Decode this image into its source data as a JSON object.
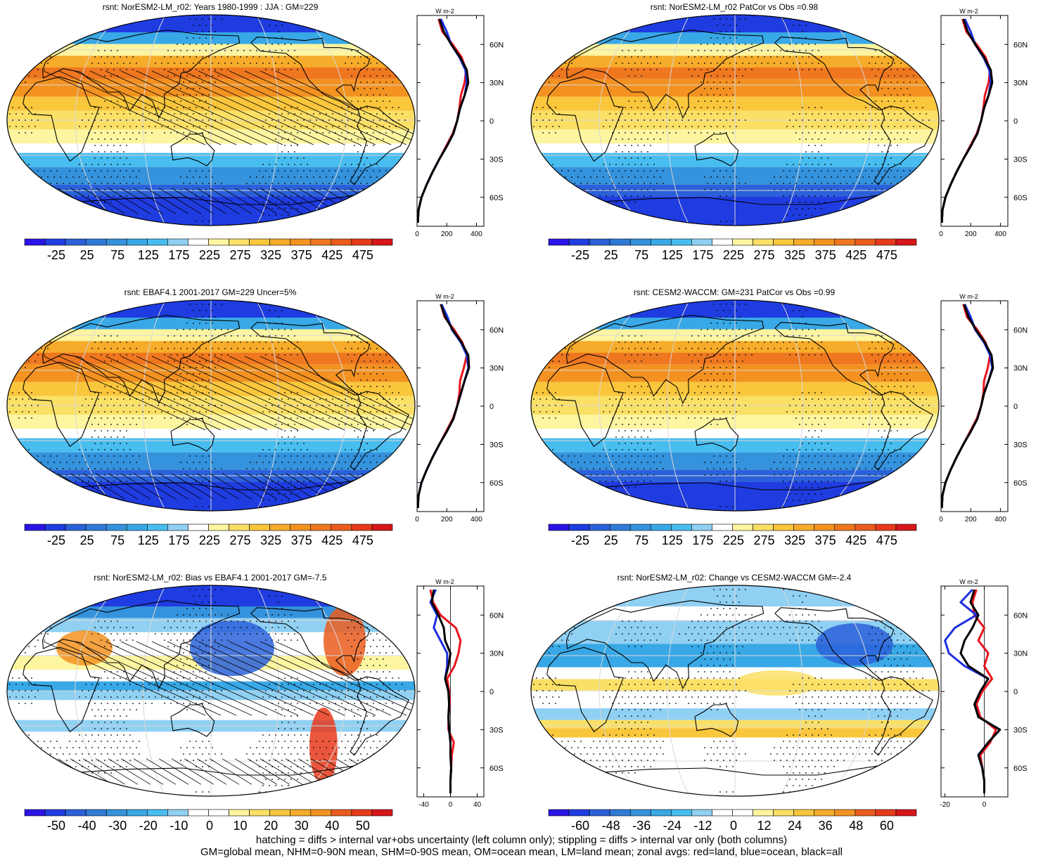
{
  "footer": {
    "line1": "hatching = diffs > internal var+obs uncertainty (left column only); stippling = diffs > internal var only (both columns)",
    "line2": "GM=global mean, NHM=0-90N mean, SHM=0-90S mean, OM=ocean mean, LM=land mean; zonal avgs: red=land, blue=ocean, black=all"
  },
  "profile_colors": {
    "land": "#e8141b",
    "ocean": "#1c2fe0",
    "all": "#000000"
  },
  "palettes": {
    "abs": [
      "#2b14e6",
      "#1f3ce0",
      "#2a61d9",
      "#2f7ad6",
      "#3592dc",
      "#38a8e6",
      "#48bdf0",
      "#8fd0f3",
      "#ffffff",
      "#fdf5a0",
      "#fbe066",
      "#f9c63c",
      "#f6ab2a",
      "#f39221",
      "#ee7720",
      "#ea5c1d",
      "#e63a1b",
      "#d6161a"
    ],
    "diff": [
      "#2b14e6",
      "#1f3ce0",
      "#2a61d9",
      "#2f7ad6",
      "#3592dc",
      "#38a8e6",
      "#48bdf0",
      "#8fd0f3",
      "#ffffff",
      "#ffffff",
      "#fdf5a0",
      "#fbe066",
      "#f9c63c",
      "#f6ab2a",
      "#f39221",
      "#ea5c1d",
      "#e63a1b",
      "#d6161a"
    ]
  },
  "chart_data": [
    {
      "type": "heatmap",
      "title": "rsnt: NorESM2-LM_r02: Years 1980-1999 : JJA : GM=229",
      "colorbar_labels": [
        "-25",
        "25",
        "75",
        "125",
        "175",
        "225",
        "275",
        "325",
        "375",
        "425",
        "475"
      ],
      "palette": "abs",
      "hatching": true,
      "stippling": true,
      "zonal_profile": {
        "unit": "W m-2",
        "xlim": [
          0,
          450
        ],
        "xticks": [
          "0",
          "200",
          "400"
        ],
        "lat_ticks": [
          "60N",
          "30N",
          "0",
          "30S",
          "60S"
        ],
        "lat": [
          80,
          70,
          60,
          50,
          40,
          30,
          20,
          10,
          0,
          -10,
          -20,
          -30,
          -40,
          -50,
          -60,
          -70,
          -80
        ],
        "all": [
          150,
          180,
          230,
          290,
          335,
          345,
          320,
          290,
          270,
          245,
          200,
          150,
          105,
          65,
          30,
          10,
          5
        ],
        "land": [
          145,
          170,
          240,
          300,
          330,
          320,
          295,
          285,
          270,
          240,
          195,
          150,
          105,
          65,
          30,
          10,
          5
        ],
        "ocean": [
          160,
          200,
          230,
          285,
          325,
          335,
          320,
          290,
          270,
          245,
          200,
          150,
          105,
          65,
          30,
          10,
          5
        ]
      }
    },
    {
      "type": "heatmap",
      "title": "rsnt: NorESM2-LM_r02 PatCor vs Obs =0.98",
      "colorbar_labels": [
        "-25",
        "25",
        "75",
        "125",
        "175",
        "225",
        "275",
        "325",
        "375",
        "425",
        "475"
      ],
      "palette": "abs",
      "hatching": false,
      "stippling": true,
      "zonal_profile": {
        "unit": "W m-2",
        "xlim": [
          0,
          450
        ],
        "xticks": [
          "0",
          "200",
          "400"
        ],
        "lat_ticks": [
          "60N",
          "30N",
          "0",
          "30S",
          "60S"
        ],
        "lat": [
          80,
          70,
          60,
          50,
          40,
          30,
          20,
          10,
          0,
          -10,
          -20,
          -30,
          -40,
          -50,
          -60,
          -70,
          -80
        ],
        "all": [
          150,
          180,
          230,
          290,
          335,
          345,
          320,
          290,
          270,
          245,
          200,
          150,
          105,
          65,
          30,
          10,
          5
        ],
        "land": [
          145,
          170,
          240,
          300,
          330,
          320,
          295,
          285,
          270,
          240,
          195,
          150,
          105,
          65,
          30,
          10,
          5
        ],
        "ocean": [
          160,
          200,
          230,
          285,
          325,
          335,
          320,
          290,
          270,
          245,
          200,
          150,
          105,
          65,
          30,
          10,
          5
        ]
      }
    },
    {
      "type": "heatmap",
      "title": "rsnt: EBAF4.1 2001-2017 GM=229 Uncer=5%",
      "colorbar_labels": [
        "-25",
        "25",
        "75",
        "125",
        "175",
        "225",
        "275",
        "325",
        "375",
        "425",
        "475"
      ],
      "palette": "abs",
      "hatching": true,
      "stippling": true,
      "zonal_profile": {
        "unit": "W m-2",
        "xlim": [
          0,
          450
        ],
        "xticks": [
          "0",
          "200",
          "400"
        ],
        "lat_ticks": [
          "60N",
          "30N",
          "0",
          "30S",
          "60S"
        ],
        "lat": [
          80,
          70,
          60,
          50,
          40,
          30,
          20,
          10,
          0,
          -10,
          -20,
          -30,
          -40,
          -50,
          -60,
          -70,
          -80
        ],
        "all": [
          160,
          190,
          240,
          300,
          345,
          350,
          320,
          295,
          270,
          245,
          200,
          150,
          105,
          65,
          30,
          10,
          5
        ],
        "land": [
          160,
          185,
          250,
          305,
          335,
          315,
          290,
          285,
          270,
          240,
          195,
          150,
          105,
          65,
          30,
          10,
          5
        ],
        "ocean": [
          165,
          205,
          235,
          295,
          335,
          345,
          320,
          295,
          270,
          245,
          200,
          150,
          105,
          65,
          30,
          10,
          5
        ]
      }
    },
    {
      "type": "heatmap",
      "title": "rsnt: CESM2-WACCM: GM=231 PatCor vs Obs =0.99",
      "colorbar_labels": [
        "-25",
        "25",
        "75",
        "125",
        "175",
        "225",
        "275",
        "325",
        "375",
        "425",
        "475"
      ],
      "palette": "abs",
      "hatching": false,
      "stippling": true,
      "zonal_profile": {
        "unit": "W m-2",
        "xlim": [
          0,
          450
        ],
        "xticks": [
          "0",
          "200",
          "400"
        ],
        "lat_ticks": [
          "60N",
          "30N",
          "0",
          "30S",
          "60S"
        ],
        "lat": [
          80,
          70,
          60,
          50,
          40,
          30,
          20,
          10,
          0,
          -10,
          -20,
          -30,
          -40,
          -50,
          -60,
          -70,
          -80
        ],
        "all": [
          155,
          185,
          235,
          295,
          340,
          350,
          320,
          290,
          270,
          245,
          200,
          150,
          105,
          65,
          30,
          10,
          5
        ],
        "land": [
          150,
          175,
          245,
          300,
          330,
          315,
          290,
          285,
          270,
          240,
          195,
          150,
          105,
          65,
          30,
          10,
          5
        ],
        "ocean": [
          160,
          200,
          230,
          290,
          330,
          345,
          320,
          290,
          270,
          245,
          200,
          150,
          105,
          65,
          30,
          10,
          5
        ]
      }
    },
    {
      "type": "heatmap",
      "title": "rsnt: NorESM2-LM_r02: Bias vs EBAF4.1 2001-2017 GM=-7.5",
      "colorbar_labels": [
        "-50",
        "-40",
        "-30",
        "-20",
        "-10",
        "0",
        "10",
        "20",
        "30",
        "40",
        "50"
      ],
      "palette": "diff",
      "hatching": true,
      "stippling": true,
      "zonal_profile": {
        "unit": "W m-2",
        "xlim": [
          -50,
          50
        ],
        "xticks": [
          "-40",
          "0",
          "40"
        ],
        "lat_ticks": [
          "60N",
          "30N",
          "0",
          "30S",
          "60S"
        ],
        "lat": [
          80,
          70,
          60,
          50,
          40,
          30,
          20,
          10,
          0,
          -10,
          -20,
          -30,
          -40,
          -50,
          -60,
          -70,
          -80
        ],
        "all": [
          -25,
          -28,
          -18,
          -10,
          -8,
          0,
          -3,
          -8,
          -3,
          -2,
          -3,
          -2,
          0,
          0,
          1,
          0,
          0
        ],
        "land": [
          -30,
          -26,
          -15,
          8,
          15,
          12,
          6,
          -5,
          -2,
          -1,
          -3,
          -3,
          5,
          2,
          1,
          0,
          0
        ],
        "ocean": [
          -22,
          -30,
          -20,
          -25,
          -15,
          -5,
          -5,
          -8,
          -3,
          -2,
          -3,
          -2,
          0,
          0,
          1,
          0,
          0
        ]
      }
    },
    {
      "type": "heatmap",
      "title": "rsnt: NorESM2-LM_r02: Change vs CESM2-WACCM GM=-2.4",
      "colorbar_labels": [
        "-60",
        "-48",
        "-36",
        "-24",
        "-12",
        "0",
        "12",
        "24",
        "36",
        "48",
        "60"
      ],
      "palette": "diff",
      "hatching": false,
      "stippling": true,
      "zonal_profile": {
        "unit": "W m-2",
        "xlim": [
          -22,
          12
        ],
        "xticks": [
          "-20",
          "0"
        ],
        "lat_ticks": [
          "60N",
          "30N",
          "0",
          "30S",
          "60S"
        ],
        "lat": [
          80,
          70,
          60,
          50,
          40,
          30,
          20,
          10,
          0,
          -10,
          -20,
          -30,
          -40,
          -50,
          -60,
          -70,
          -80
        ],
        "all": [
          -5,
          -7,
          -3,
          -6,
          -10,
          -12,
          -8,
          2,
          -2,
          -5,
          -3,
          8,
          2,
          -3,
          -1,
          0,
          0
        ],
        "land": [
          -4,
          -6,
          -5,
          0,
          -3,
          2,
          0,
          4,
          -1,
          -4,
          -2,
          6,
          3,
          -2,
          -1,
          0,
          0
        ],
        "ocean": [
          -6,
          -12,
          -4,
          -15,
          -20,
          -18,
          -10,
          2,
          -2,
          -5,
          -3,
          8,
          2,
          -3,
          -1,
          0,
          0
        ]
      }
    }
  ]
}
